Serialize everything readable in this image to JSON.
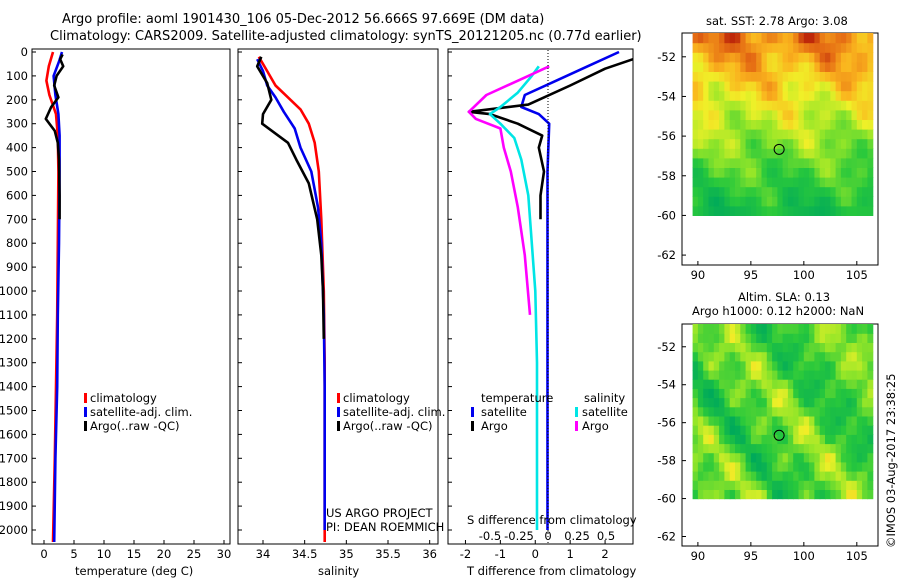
{
  "header": {
    "line1": "Argo profile: aoml 1901430_106 05-Dec-2012 56.666S 97.669E (DM data)",
    "line2": "Climatology: CARS2009. Satellite-adjusted climatology: synTS_20121205.nc (0.77d earlier)"
  },
  "colors": {
    "climatology": "#ff0000",
    "satellite": "#0000ee",
    "argo": "#000000",
    "argo_salinity_diff": "#ff00ff",
    "satellite_salinity_diff": "#00e5e5"
  },
  "legend1": [
    "climatology",
    "satellite-adj. clim.",
    "Argo(..raw -QC)"
  ],
  "legend2": [
    "climatology",
    "satellite-adj. clim.",
    "Argo(..raw -QC)"
  ],
  "legend3": {
    "temperature_title": "temperature",
    "salinity_title": "salinity",
    "t_satellite": "satellite",
    "t_argo": "Argo",
    "s_satellite": "satellite",
    "s_argo": "Argo"
  },
  "credits": {
    "line1": "US ARGO PROJECT",
    "line2": "PI: DEAN ROEMMICH"
  },
  "maps": {
    "map1_title": "sat. SST: 2.78  Argo: 3.08",
    "map2_title1": "Altim. SLA: 0.13",
    "map2_title2": "Argo h1000: 0.12  h2000: NaN",
    "float_position": {
      "lon": 97.669,
      "lat": -56.666
    }
  },
  "timestamp": "©IMOS 03-Aug-2017 23:38:25",
  "chart_data": [
    {
      "type": "line",
      "xlabel": "temperature (deg C)",
      "ylabel": "",
      "xlim": [
        -2,
        31
      ],
      "ylim": [
        2050,
        0
      ],
      "xticks": [
        0,
        5,
        10,
        15,
        20,
        25,
        30
      ],
      "yticks": [
        0,
        100,
        200,
        300,
        400,
        500,
        600,
        700,
        800,
        900,
        1000,
        1100,
        1200,
        1300,
        1400,
        1500,
        1600,
        1700,
        1800,
        1900,
        2000
      ],
      "series": [
        {
          "name": "climatology",
          "color": "#ff0000",
          "points": [
            [
              1.5,
              0
            ],
            [
              0.8,
              60
            ],
            [
              0.4,
              120
            ],
            [
              0.9,
              180
            ],
            [
              2.0,
              260
            ],
            [
              2.3,
              350
            ],
            [
              2.4,
              500
            ],
            [
              2.3,
              800
            ],
            [
              2.2,
              1100
            ],
            [
              2.0,
              1400
            ],
            [
              1.8,
              1700
            ],
            [
              1.5,
              2050
            ]
          ]
        },
        {
          "name": "satellite-adj. clim.",
          "color": "#0000ee",
          "points": [
            [
              3.0,
              0
            ],
            [
              2.5,
              40
            ],
            [
              1.6,
              100
            ],
            [
              1.9,
              180
            ],
            [
              2.4,
              260
            ],
            [
              2.6,
              350
            ],
            [
              2.6,
              500
            ],
            [
              2.5,
              800
            ],
            [
              2.3,
              1100
            ],
            [
              2.2,
              1400
            ],
            [
              1.9,
              1700
            ],
            [
              1.7,
              2050
            ]
          ]
        },
        {
          "name": "Argo(..raw -QC)",
          "color": "#000000",
          "points": [
            [
              3.1,
              10
            ],
            [
              2.7,
              30
            ],
            [
              3.2,
              60
            ],
            [
              2.1,
              100
            ],
            [
              1.7,
              140
            ],
            [
              2.4,
              190
            ],
            [
              1.2,
              230
            ],
            [
              0.3,
              280
            ],
            [
              1.8,
              330
            ],
            [
              2.3,
              380
            ],
            [
              2.5,
              450
            ],
            [
              2.6,
              600
            ],
            [
              2.6,
              700
            ]
          ]
        }
      ]
    },
    {
      "type": "line",
      "xlabel": "salinity",
      "ylabel": "",
      "xlim": [
        33.7,
        36.1
      ],
      "ylim": [
        2050,
        0
      ],
      "xticks": [
        34,
        34.5,
        35,
        35.5,
        36
      ],
      "series": [
        {
          "name": "climatology",
          "color": "#ff0000",
          "points": [
            [
              33.95,
              20
            ],
            [
              34.05,
              80
            ],
            [
              34.15,
              140
            ],
            [
              34.3,
              190
            ],
            [
              34.45,
              240
            ],
            [
              34.55,
              300
            ],
            [
              34.62,
              380
            ],
            [
              34.67,
              500
            ],
            [
              34.7,
              700
            ],
            [
              34.73,
              1000
            ],
            [
              34.74,
              1300
            ],
            [
              34.74,
              1700
            ],
            [
              34.74,
              2050
            ]
          ]
        },
        {
          "name": "satellite-adj. clim.",
          "color": "#0000ee",
          "points": [
            [
              33.93,
              30
            ],
            [
              34.0,
              80
            ],
            [
              34.05,
              140
            ],
            [
              34.15,
              190
            ],
            [
              34.25,
              250
            ],
            [
              34.38,
              320
            ],
            [
              34.45,
              400
            ],
            [
              34.58,
              500
            ],
            [
              34.66,
              650
            ],
            [
              34.7,
              800
            ],
            [
              34.73,
              1100
            ],
            [
              34.74,
              1400
            ],
            [
              34.74,
              1800
            ],
            [
              34.74,
              2000
            ]
          ]
        },
        {
          "name": "Argo(..raw -QC)",
          "color": "#000000",
          "points": [
            [
              33.98,
              20
            ],
            [
              33.93,
              60
            ],
            [
              34.05,
              130
            ],
            [
              34.1,
              200
            ],
            [
              34.0,
              260
            ],
            [
              33.99,
              300
            ],
            [
              34.3,
              380
            ],
            [
              34.4,
              450
            ],
            [
              34.55,
              550
            ],
            [
              34.65,
              700
            ],
            [
              34.7,
              850
            ],
            [
              34.72,
              1000
            ],
            [
              34.73,
              1200
            ]
          ]
        }
      ]
    },
    {
      "type": "line",
      "xlabel": "T difference from climatology",
      "ylabel": "",
      "xlim": [
        -2.5,
        2.8
      ],
      "ylim": [
        2050,
        0
      ],
      "xticks": [
        -2,
        -1,
        0,
        1,
        2
      ],
      "secondary_xlabel": "S difference from climatology",
      "secondary_xticks": [
        "-0.5",
        "-0.25",
        "0",
        "0.25",
        "0.5"
      ],
      "series": [
        {
          "name": "temperature satellite",
          "color": "#0000ee",
          "points": [
            [
              2.4,
              0
            ],
            [
              1.5,
              60
            ],
            [
              0.6,
              120
            ],
            [
              -0.3,
              180
            ],
            [
              -0.4,
              230
            ],
            [
              0.1,
              260
            ],
            [
              0.4,
              300
            ],
            [
              0.35,
              500
            ],
            [
              0.35,
              1000
            ],
            [
              0.35,
              1500
            ],
            [
              0.35,
              2000
            ]
          ]
        },
        {
          "name": "temperature Argo",
          "color": "#000000",
          "points": [
            [
              2.8,
              30
            ],
            [
              2.0,
              70
            ],
            [
              1.0,
              140
            ],
            [
              -0.2,
              220
            ],
            [
              -1.9,
              250
            ],
            [
              -1.3,
              260
            ],
            [
              -0.5,
              300
            ],
            [
              0.2,
              350
            ],
            [
              0.1,
              400
            ],
            [
              0.25,
              500
            ],
            [
              0.15,
              600
            ],
            [
              0.15,
              700
            ]
          ]
        },
        {
          "name": "salinity satellite",
          "color": "#00e5e5",
          "points": [
            [
              0.1,
              60
            ],
            [
              -0.1,
              100
            ],
            [
              -0.5,
              170
            ],
            [
              -1.0,
              230
            ],
            [
              -1.3,
              260
            ],
            [
              -1.0,
              300
            ],
            [
              -0.6,
              360
            ],
            [
              -0.4,
              450
            ],
            [
              -0.2,
              600
            ],
            [
              -0.1,
              800
            ],
            [
              0.0,
              1000
            ],
            [
              0.05,
              1300
            ],
            [
              0.05,
              1700
            ],
            [
              0.05,
              2000
            ]
          ]
        },
        {
          "name": "salinity Argo",
          "color": "#ff00ff",
          "points": [
            [
              0.4,
              60
            ],
            [
              -0.2,
              100
            ],
            [
              -1.4,
              180
            ],
            [
              -1.9,
              250
            ],
            [
              -1.7,
              280
            ],
            [
              -1.0,
              320
            ],
            [
              -0.9,
              400
            ],
            [
              -0.7,
              500
            ],
            [
              -0.5,
              650
            ],
            [
              -0.3,
              850
            ],
            [
              -0.15,
              1100
            ]
          ]
        }
      ]
    },
    {
      "type": "heatmap",
      "title": "sat. SST: 2.78  Argo: 3.08",
      "xlim": [
        88.5,
        107
      ],
      "ylim": [
        -62.5,
        -50.8
      ],
      "xticks": [
        90,
        95,
        100,
        105
      ],
      "yticks": [
        -52,
        -54,
        -56,
        -58,
        -60,
        -62
      ]
    },
    {
      "type": "heatmap",
      "title": "Altim. SLA: 0.13",
      "xlim": [
        88.5,
        107
      ],
      "ylim": [
        -62.5,
        -50.8
      ],
      "xticks": [
        90,
        95,
        100,
        105
      ],
      "yticks": [
        -52,
        -54,
        -56,
        -58,
        -60,
        -62
      ]
    }
  ]
}
